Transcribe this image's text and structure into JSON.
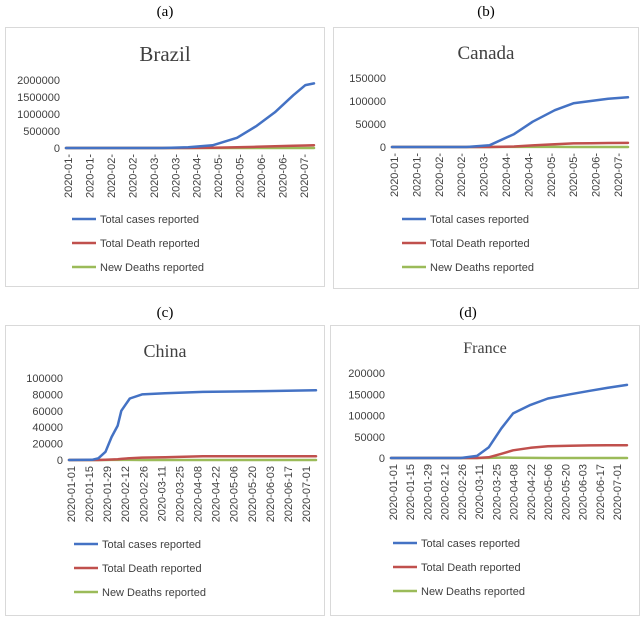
{
  "panel_labels": [
    "(a)",
    "(b)",
    "(c)",
    "(d)"
  ],
  "colors": {
    "total_cases": "#4472c4",
    "total_deaths": "#c0504d",
    "new_deaths": "#9bbb59"
  },
  "chart_data": [
    {
      "type": "line",
      "title": "Brazil",
      "ylim": [
        0,
        2000000
      ],
      "yticks": [
        "0",
        "500000",
        "1000000",
        "1500000",
        "2000000"
      ],
      "xticks": [
        "2020-01-",
        "2020-01-",
        "2020-02-",
        "2020-02-",
        "2020-03-",
        "2020-03-",
        "2020-04-",
        "2020-05-",
        "2020-05-",
        "2020-06-",
        "2020-06-",
        "2020-07-"
      ],
      "x": [
        "2020-01-01",
        "2020-02-26",
        "2020-03-20",
        "2020-04-10",
        "2020-04-30",
        "2020-05-20",
        "2020-06-05",
        "2020-06-20",
        "2020-07-05",
        "2020-07-15",
        "2020-07-22"
      ],
      "series": [
        {
          "name": "Total cases reported",
          "values": [
            0,
            1,
            900,
            20000,
            80000,
            300000,
            650000,
            1050000,
            1550000,
            1850000,
            1900000
          ]
        },
        {
          "name": "Total Death reported",
          "values": [
            0,
            0,
            20,
            1100,
            6000,
            20000,
            35000,
            50000,
            64000,
            74000,
            81000
          ]
        },
        {
          "name": "New Deaths reported",
          "values": [
            0,
            0,
            5,
            100,
            450,
            900,
            1100,
            1100,
            1100,
            1100,
            1000
          ]
        }
      ],
      "legend": "bottom"
    },
    {
      "type": "line",
      "title": "Canada",
      "ylim": [
        0,
        150000
      ],
      "yticks": [
        "0",
        "50000",
        "100000",
        "150000"
      ],
      "xticks": [
        "2020-01-",
        "2020-01-",
        "2020-02-",
        "2020-02-",
        "2020-03-",
        "2020-04-",
        "2020-04-",
        "2020-05-",
        "2020-05-",
        "2020-06-",
        "2020-07-"
      ],
      "x": [
        "2020-01-01",
        "2020-03-05",
        "2020-03-25",
        "2020-04-15",
        "2020-05-01",
        "2020-05-20",
        "2020-06-05",
        "2020-06-20",
        "2020-07-05",
        "2020-07-22"
      ],
      "series": [
        {
          "name": "Total cases reported",
          "values": [
            0,
            50,
            4000,
            28000,
            55000,
            80000,
            95000,
            100000,
            105000,
            108000
          ]
        },
        {
          "name": "Total Death reported",
          "values": [
            0,
            0,
            50,
            1000,
            3500,
            6000,
            7800,
            8300,
            8700,
            8900
          ]
        },
        {
          "name": "New Deaths reported",
          "values": [
            0,
            0,
            10,
            120,
            150,
            130,
            80,
            40,
            20,
            10
          ]
        }
      ],
      "legend": "bottom"
    },
    {
      "type": "line",
      "title": "China",
      "ylim": [
        0,
        100000
      ],
      "yticks": [
        "0",
        "20000",
        "40000",
        "60000",
        "80000",
        "100000"
      ],
      "xticks": [
        "2020-01-01",
        "2020-01-15",
        "2020-01-29",
        "2020-02-12",
        "2020-02-26",
        "2020-03-11",
        "2020-03-25",
        "2020-04-08",
        "2020-04-22",
        "2020-05-06",
        "2020-05-20",
        "2020-06-03",
        "2020-06-17",
        "2020-07-01"
      ],
      "x": [
        "2020-01-01",
        "2020-01-20",
        "2020-01-25",
        "2020-01-31",
        "2020-02-05",
        "2020-02-10",
        "2020-02-13",
        "2020-02-20",
        "2020-03-01",
        "2020-03-20",
        "2020-04-20",
        "2020-06-10",
        "2020-07-22"
      ],
      "series": [
        {
          "name": "Total cases reported",
          "values": [
            0,
            300,
            2000,
            10000,
            28000,
            42000,
            60000,
            75000,
            80000,
            81500,
            83000,
            84000,
            85000
          ]
        },
        {
          "name": "Total Death reported",
          "values": [
            0,
            5,
            50,
            250,
            560,
            1000,
            1400,
            2200,
            2900,
            3250,
            4600,
            4640,
            4640
          ]
        },
        {
          "name": "New Deaths reported",
          "values": [
            0,
            0,
            10,
            40,
            70,
            100,
            250,
            110,
            40,
            10,
            0,
            0,
            0
          ]
        }
      ],
      "legend": "bottom"
    },
    {
      "type": "line",
      "title": "France",
      "ylim": [
        0,
        200000
      ],
      "yticks": [
        "0",
        "50000",
        "100000",
        "150000",
        "200000"
      ],
      "xticks": [
        "2020-01-01",
        "2020-01-15",
        "2020-01-29",
        "2020-02-12",
        "2020-02-26",
        "2020-03-11",
        "2020-03-25",
        "2020-04-08",
        "2020-04-22",
        "2020-05-06",
        "2020-05-20",
        "2020-06-03",
        "2020-06-17",
        "2020-07-01"
      ],
      "x": [
        "2020-01-01",
        "2020-03-01",
        "2020-03-15",
        "2020-03-25",
        "2020-04-05",
        "2020-04-15",
        "2020-04-30",
        "2020-05-15",
        "2020-06-03",
        "2020-06-20",
        "2020-07-05",
        "2020-07-22"
      ],
      "series": [
        {
          "name": "Total cases reported",
          "values": [
            0,
            100,
            5000,
            25000,
            70000,
            105000,
            125000,
            140000,
            150000,
            158000,
            165000,
            172000
          ]
        },
        {
          "name": "Total Death reported",
          "values": [
            0,
            2,
            100,
            1700,
            10000,
            18000,
            24000,
            27500,
            29000,
            29600,
            29900,
            30200
          ]
        },
        {
          "name": "New Deaths reported",
          "values": [
            0,
            0,
            20,
            300,
            1000,
            800,
            300,
            100,
            50,
            30,
            20,
            10
          ]
        }
      ],
      "legend": "bottom"
    }
  ]
}
